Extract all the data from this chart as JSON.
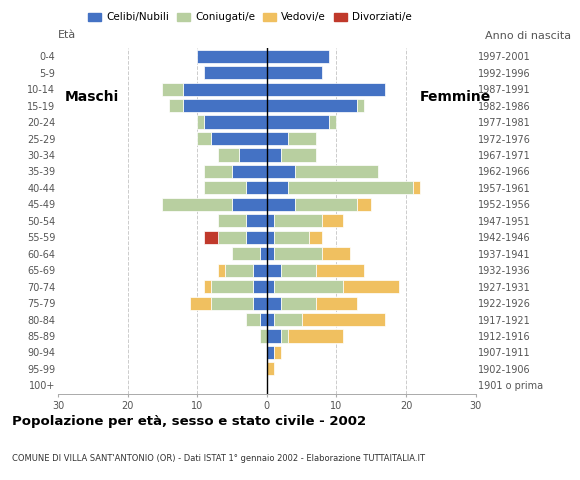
{
  "age_groups": [
    "100+",
    "95-99",
    "90-94",
    "85-89",
    "80-84",
    "75-79",
    "70-74",
    "65-69",
    "60-64",
    "55-59",
    "50-54",
    "45-49",
    "40-44",
    "35-39",
    "30-34",
    "25-29",
    "20-24",
    "15-19",
    "10-14",
    "5-9",
    "0-4"
  ],
  "birth_years": [
    "1901 o prima",
    "1902-1906",
    "1907-1911",
    "1912-1916",
    "1917-1921",
    "1922-1926",
    "1927-1931",
    "1932-1936",
    "1937-1941",
    "1942-1946",
    "1947-1951",
    "1952-1956",
    "1957-1961",
    "1962-1966",
    "1967-1971",
    "1972-1976",
    "1977-1981",
    "1982-1986",
    "1987-1991",
    "1992-1996",
    "1997-2001"
  ],
  "colors": {
    "celibe": "#4472c4",
    "coniugato": "#b8cfa0",
    "vedovo": "#f0c060",
    "divorziato": "#c0392b"
  },
  "males": {
    "celibe": [
      0,
      0,
      0,
      0,
      1,
      2,
      2,
      2,
      1,
      3,
      3,
      5,
      3,
      5,
      4,
      8,
      9,
      12,
      12,
      9,
      10
    ],
    "coniugato": [
      0,
      0,
      0,
      1,
      2,
      6,
      6,
      4,
      4,
      4,
      4,
      10,
      6,
      4,
      3,
      2,
      1,
      2,
      3,
      0,
      0
    ],
    "vedovo": [
      0,
      0,
      0,
      0,
      0,
      3,
      1,
      1,
      0,
      0,
      0,
      0,
      0,
      0,
      0,
      0,
      0,
      0,
      0,
      0,
      0
    ],
    "divorziato": [
      0,
      0,
      0,
      0,
      0,
      0,
      0,
      0,
      0,
      2,
      0,
      0,
      0,
      0,
      0,
      0,
      0,
      0,
      0,
      0,
      0
    ]
  },
  "females": {
    "celibe": [
      0,
      0,
      1,
      2,
      1,
      2,
      1,
      2,
      1,
      1,
      1,
      4,
      3,
      4,
      2,
      3,
      9,
      13,
      17,
      8,
      9
    ],
    "coniugato": [
      0,
      0,
      0,
      1,
      4,
      5,
      10,
      5,
      7,
      5,
      7,
      9,
      18,
      12,
      5,
      4,
      1,
      1,
      0,
      0,
      0
    ],
    "vedovo": [
      0,
      1,
      1,
      8,
      12,
      6,
      8,
      7,
      4,
      2,
      3,
      2,
      1,
      0,
      0,
      0,
      0,
      0,
      0,
      0,
      0
    ],
    "divorziato": [
      0,
      0,
      0,
      0,
      0,
      0,
      0,
      0,
      0,
      0,
      0,
      0,
      0,
      0,
      0,
      0,
      0,
      0,
      0,
      0,
      0
    ]
  },
  "title": "Popolazione per età, sesso e stato civile - 2002",
  "subtitle": "COMUNE DI VILLA SANT'ANTONIO (OR) - Dati ISTAT 1° gennaio 2002 - Elaborazione TUTTAITALIA.IT",
  "xlabel_left": "Maschi",
  "xlabel_right": "Femmine",
  "ylabel_left": "Età",
  "ylabel_right": "Anno di nascita",
  "xlim": 30,
  "legend_labels": [
    "Celibi/Nubili",
    "Coniugati/e",
    "Vedovi/e",
    "Divorziati/e"
  ],
  "background_color": "#ffffff",
  "bar_height": 0.8,
  "grid_color": "#cccccc"
}
